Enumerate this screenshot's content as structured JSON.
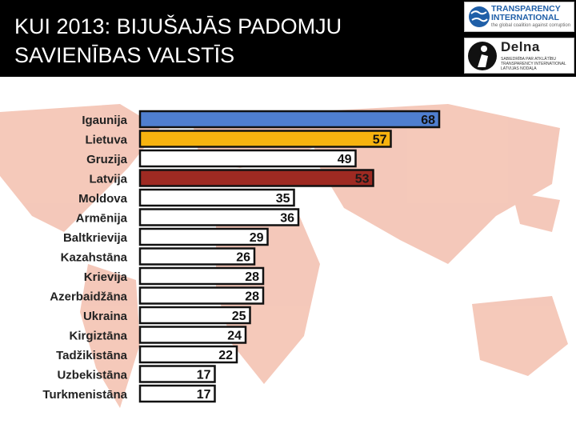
{
  "header": {
    "title_line1": "KUI 2013: BIJUŠAJĀS PADOMJU",
    "title_line2": "SAVIENĪBAS VALSTĪS"
  },
  "logos": {
    "ti_name_line1": "TRANSPARENCY",
    "ti_name_line2": "INTERNATIONAL",
    "ti_tagline": "the global coalition against corruption",
    "delna_name": "Delna",
    "delna_sub_line1": "SABIEDRĪBA PAR ATKLĀTĪBU",
    "delna_sub_line2": "TRANSPARENCY INTERNATIONAL",
    "delna_sub_line3": "LATVIJAS NODAĻA"
  },
  "colors": {
    "blue": "#4f7fd0",
    "orange": "#f7b30f",
    "red": "#9e2a22",
    "white": "#ffffff",
    "map": "#f1b6a4"
  },
  "chart_data": {
    "type": "bar",
    "orientation": "horizontal",
    "categories": [
      "Igaunija",
      "Lietuva",
      "Gruzija",
      "Latvija",
      "Moldova",
      "Armēnija",
      "Baltkrievija",
      "Kazahstāna",
      "Krievija",
      "Azerbaidžāna",
      "Ukraina",
      "Kirgiztāna",
      "Tadžikistāna",
      "Uzbekistāna",
      "Turkmenistāna"
    ],
    "values": [
      68,
      57,
      49,
      53,
      35,
      36,
      29,
      26,
      28,
      28,
      25,
      24,
      22,
      17,
      17
    ],
    "data_labels": [
      "68",
      "57",
      "49",
      "53",
      "35",
      "36",
      "29",
      "26",
      "28",
      "28",
      "25",
      "24",
      "22",
      "17",
      "17"
    ],
    "bar_colors": [
      "blue",
      "orange",
      "white",
      "red",
      "white",
      "white",
      "white",
      "white",
      "white",
      "white",
      "white",
      "white",
      "white",
      "white",
      "white"
    ],
    "xlim": [
      0,
      68
    ],
    "grid": false,
    "legend": "none"
  }
}
